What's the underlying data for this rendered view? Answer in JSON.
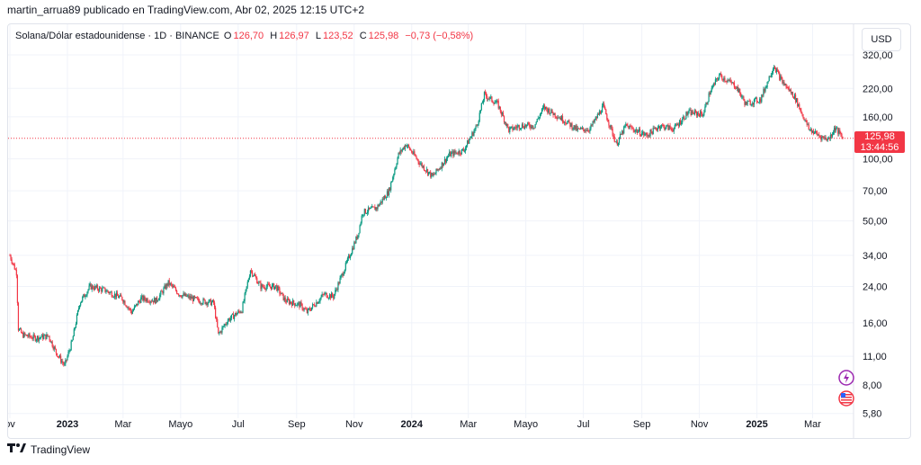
{
  "caption": "martin_arrua89 publicado en TradingView.com, Abr 02, 2025 12:15 UTC+2",
  "header": {
    "symbol": "Solana/Dólar estadounidense · 1D · BINANCE",
    "ohlc": [
      {
        "label": "O",
        "value": "126,70"
      },
      {
        "label": "H",
        "value": "126,97"
      },
      {
        "label": "L",
        "value": "123,52"
      },
      {
        "label": "C",
        "value": "125,98"
      }
    ],
    "change": "−0,73 (−0,58%)"
  },
  "currency_label": "USD",
  "price_tag": {
    "price": "125,98",
    "countdown": "13:44:56"
  },
  "footer_brand": "TradingView",
  "icons": [
    "bolt-icon",
    "us-flag-icon",
    "tradingview-logo-icon"
  ],
  "colors": {
    "up": "#089981",
    "down": "#f23645",
    "grid": "#f0f3fa",
    "text": "#131722"
  },
  "chart_data": {
    "type": "candlestick",
    "title": "Solana/Dólar estadounidense · 1D · BINANCE",
    "yscale": "log",
    "ylim": [
      5.5,
      340
    ],
    "y_ticks": [
      {
        "value": 320,
        "label": "320,00"
      },
      {
        "value": 220,
        "label": "220,00"
      },
      {
        "value": 160,
        "label": "160,00"
      },
      {
        "value": 100,
        "label": "100,00"
      },
      {
        "value": 70,
        "label": "70,00"
      },
      {
        "value": 50,
        "label": "50,00"
      },
      {
        "value": 34,
        "label": "34,00"
      },
      {
        "value": 24,
        "label": "24,00"
      },
      {
        "value": 16,
        "label": "16,00"
      },
      {
        "value": 11,
        "label": "11,00"
      },
      {
        "value": 8,
        "label": "8,00"
      },
      {
        "value": 5.8,
        "label": "5,80"
      }
    ],
    "xlim": [
      "2022-11-01",
      "2025-04-02"
    ],
    "x_ticks": [
      {
        "date": "2022-11-01",
        "label": "ov",
        "bold": false
      },
      {
        "date": "2023-01-01",
        "label": "2023",
        "bold": true
      },
      {
        "date": "2023-03-01",
        "label": "Mar",
        "bold": false
      },
      {
        "date": "2023-05-01",
        "label": "Mayo",
        "bold": false
      },
      {
        "date": "2023-07-01",
        "label": "Jul",
        "bold": false
      },
      {
        "date": "2023-09-01",
        "label": "Sep",
        "bold": false
      },
      {
        "date": "2023-11-01",
        "label": "Nov",
        "bold": false
      },
      {
        "date": "2024-01-01",
        "label": "2024",
        "bold": true
      },
      {
        "date": "2024-03-01",
        "label": "Mar",
        "bold": false
      },
      {
        "date": "2024-05-01",
        "label": "Mayo",
        "bold": false
      },
      {
        "date": "2024-07-01",
        "label": "Jul",
        "bold": false
      },
      {
        "date": "2024-09-01",
        "label": "Sep",
        "bold": false
      },
      {
        "date": "2024-11-01",
        "label": "Nov",
        "bold": false
      },
      {
        "date": "2025-01-01",
        "label": "2025",
        "bold": true
      },
      {
        "date": "2025-03-01",
        "label": "Mar",
        "bold": false
      }
    ],
    "last_price": 125.98,
    "grid": true,
    "price_path": [
      [
        "2022-11-01",
        34
      ],
      [
        "2022-11-08",
        28
      ],
      [
        "2022-11-10",
        15
      ],
      [
        "2022-11-14",
        14
      ],
      [
        "2022-11-28",
        13.5
      ],
      [
        "2022-12-12",
        13.8
      ],
      [
        "2022-12-20",
        11.5
      ],
      [
        "2022-12-29",
        9.9
      ],
      [
        "2023-01-06",
        13
      ],
      [
        "2023-01-14",
        20
      ],
      [
        "2023-01-25",
        24
      ],
      [
        "2023-02-10",
        23
      ],
      [
        "2023-02-28",
        21
      ],
      [
        "2023-03-10",
        18
      ],
      [
        "2023-03-20",
        21
      ],
      [
        "2023-04-05",
        20.5
      ],
      [
        "2023-04-18",
        25
      ],
      [
        "2023-04-30",
        22
      ],
      [
        "2023-05-20",
        20.5
      ],
      [
        "2023-06-05",
        20
      ],
      [
        "2023-06-10",
        14
      ],
      [
        "2023-06-20",
        16.5
      ],
      [
        "2023-07-05",
        18.5
      ],
      [
        "2023-07-14",
        29
      ],
      [
        "2023-07-25",
        24
      ],
      [
        "2023-08-10",
        24
      ],
      [
        "2023-08-20",
        20.5
      ],
      [
        "2023-09-05",
        19.5
      ],
      [
        "2023-09-12",
        18
      ],
      [
        "2023-09-30",
        22
      ],
      [
        "2023-10-10",
        21.5
      ],
      [
        "2023-10-25",
        32
      ],
      [
        "2023-11-05",
        43
      ],
      [
        "2023-11-10",
        55
      ],
      [
        "2023-11-25",
        58
      ],
      [
        "2023-12-08",
        70
      ],
      [
        "2023-12-18",
        105
      ],
      [
        "2023-12-26",
        118
      ],
      [
        "2024-01-10",
        95
      ],
      [
        "2024-01-23",
        82
      ],
      [
        "2024-02-10",
        105
      ],
      [
        "2024-02-25",
        110
      ],
      [
        "2024-03-10",
        145
      ],
      [
        "2024-03-18",
        205
      ],
      [
        "2024-04-01",
        185
      ],
      [
        "2024-04-13",
        138
      ],
      [
        "2024-04-25",
        145
      ],
      [
        "2024-05-10",
        145
      ],
      [
        "2024-05-20",
        178
      ],
      [
        "2024-06-10",
        155
      ],
      [
        "2024-06-25",
        138
      ],
      [
        "2024-07-08",
        140
      ],
      [
        "2024-07-22",
        180
      ],
      [
        "2024-08-05",
        118
      ],
      [
        "2024-08-15",
        145
      ],
      [
        "2024-09-06",
        130
      ],
      [
        "2024-09-20",
        145
      ],
      [
        "2024-10-05",
        140
      ],
      [
        "2024-10-20",
        168
      ],
      [
        "2024-11-05",
        165
      ],
      [
        "2024-11-12",
        210
      ],
      [
        "2024-11-22",
        255
      ],
      [
        "2024-12-10",
        225
      ],
      [
        "2024-12-20",
        185
      ],
      [
        "2025-01-05",
        195
      ],
      [
        "2025-01-19",
        285
      ],
      [
        "2025-01-27",
        240
      ],
      [
        "2025-02-10",
        200
      ],
      [
        "2025-02-25",
        140
      ],
      [
        "2025-03-10",
        128
      ],
      [
        "2025-03-18",
        125
      ],
      [
        "2025-03-25",
        142
      ],
      [
        "2025-04-02",
        125.98
      ]
    ]
  }
}
